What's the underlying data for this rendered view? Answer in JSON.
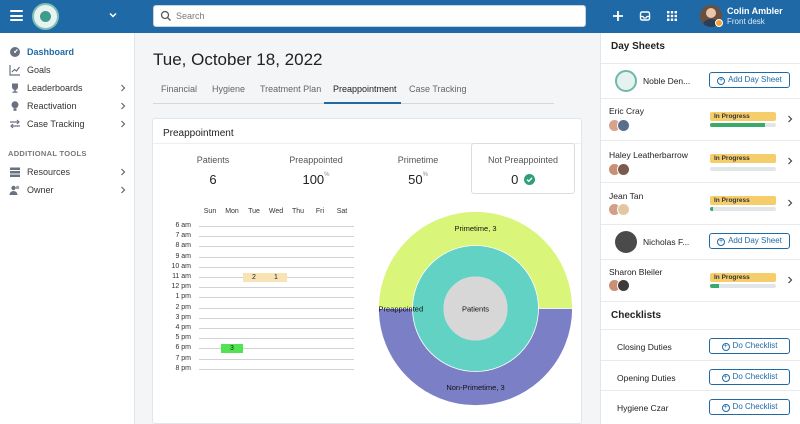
{
  "header": {
    "search_placeholder": "Search",
    "user_name": "Colin Ambler",
    "user_role": "Front desk"
  },
  "sidebar": {
    "items": [
      {
        "label": "Dashboard",
        "icon": "dashboard-icon"
      },
      {
        "label": "Goals",
        "icon": "chart-icon"
      },
      {
        "label": "Leaderboards",
        "icon": "trophy-icon"
      },
      {
        "label": "Reactivation",
        "icon": "bulb-icon"
      },
      {
        "label": "Case Tracking",
        "icon": "arrows-icon"
      }
    ],
    "section_label": "ADDITIONAL TOOLS",
    "tools": [
      {
        "label": "Resources",
        "icon": "stack-icon"
      },
      {
        "label": "Owner",
        "icon": "users-icon"
      }
    ]
  },
  "main": {
    "date_title": "Tue, October 18, 2022",
    "tabs": [
      "Financial",
      "Hygiene",
      "Treatment Plan",
      "Preappointment",
      "Case Tracking"
    ],
    "active_tab": "Preappointment",
    "card_title": "Preappointment",
    "stats": [
      {
        "label": "Patients",
        "value": "6",
        "suffix": ""
      },
      {
        "label": "Preappointed",
        "value": "100",
        "suffix": "%"
      },
      {
        "label": "Primetime",
        "value": "50",
        "suffix": "%"
      },
      {
        "label": "Not Preappointed",
        "value": "0",
        "suffix": ""
      }
    ]
  },
  "chart_data": [
    {
      "type": "heatmap",
      "x_categories": [
        "Sun",
        "Mon",
        "Tue",
        "Wed",
        "Thu",
        "Fri",
        "Sat"
      ],
      "y_categories": [
        "6 am",
        "7 am",
        "8 am",
        "9 am",
        "10 am",
        "11 am",
        "12 pm",
        "1 pm",
        "2 pm",
        "3 pm",
        "4 pm",
        "5 pm",
        "6 pm",
        "7 pm",
        "8 pm"
      ],
      "cells": [
        {
          "day": "Tue",
          "hour": "11 am",
          "value": 2,
          "color": "#f7e3b3"
        },
        {
          "day": "Wed",
          "hour": "11 am",
          "value": 1,
          "color": "#f7e3b3"
        },
        {
          "day": "Mon",
          "hour": "6 pm",
          "value": 3,
          "color": "#52e352"
        }
      ]
    },
    {
      "type": "pie",
      "rings": [
        {
          "labels": [
            "Patients"
          ],
          "values": [
            6
          ],
          "colors": [
            "#d7d7d7"
          ]
        },
        {
          "labels": [
            "Preappointed"
          ],
          "values": [
            6
          ],
          "colors": [
            "#62d2c4"
          ]
        },
        {
          "labels": [
            "Primetime, 3",
            "Non-Primetime, 3"
          ],
          "values": [
            3,
            3
          ],
          "colors": [
            "#d9f57a",
            "#7b7fc6"
          ]
        }
      ]
    }
  ],
  "right_panel": {
    "title": "Day Sheets",
    "rows": [
      {
        "name": "Noble Den...",
        "kind": "button",
        "button_label": "Add Day Sheet"
      },
      {
        "name": "Eric Cray",
        "kind": "progress",
        "status": "In Progress",
        "progress": 0.83
      },
      {
        "name": "Haley Leatherbarrow",
        "kind": "progress",
        "status": "In Progress",
        "progress": 0.0
      },
      {
        "name": "Jean Tan",
        "kind": "progress",
        "status": "In Progress",
        "progress": 0.05
      },
      {
        "name": "Nicholas F...",
        "kind": "button",
        "button_label": "Add Day Sheet"
      },
      {
        "name": "Sharon Bleiler",
        "kind": "progress",
        "status": "In Progress",
        "progress": 0.14
      }
    ],
    "checklists_title": "Checklists",
    "checklists": [
      {
        "name": "Closing Duties",
        "button_label": "Do Checklist"
      },
      {
        "name": "Opening Duties",
        "button_label": "Do Checklist"
      },
      {
        "name": "Hygiene Czar",
        "button_label": "Do Checklist"
      }
    ],
    "colors": {
      "accent": "#1f6aa6",
      "status": "#f6cd6b",
      "progress": "#3aaa6a"
    }
  }
}
